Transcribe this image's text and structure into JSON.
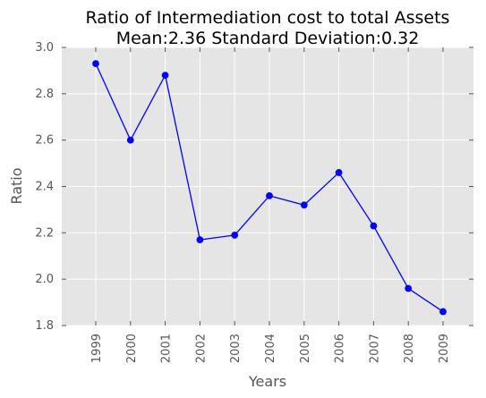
{
  "chart_data": {
    "type": "line",
    "title": "Ratio of Intermediation cost to total Assets",
    "subtitle": "Mean:2.36 Standard Deviation:0.32",
    "xlabel": "Years",
    "ylabel": "Ratio",
    "x": [
      "1999",
      "2000",
      "2001",
      "2002",
      "2003",
      "2004",
      "2005",
      "2006",
      "2007",
      "2008",
      "2009"
    ],
    "series": [
      {
        "values": [
          2.93,
          2.6,
          2.88,
          2.17,
          2.19,
          2.36,
          2.32,
          2.46,
          2.23,
          1.96,
          1.86
        ]
      }
    ],
    "ylim": [
      1.8,
      3.0
    ],
    "yticks": [
      "1.8",
      "2.0",
      "2.2",
      "2.4",
      "2.6",
      "2.8",
      "3.0"
    ],
    "grid": true,
    "legend": "none",
    "colors": {
      "background": "#e5e5e5",
      "grid": "#ffffff",
      "line": "#0000ff",
      "marker": "#0000ff"
    }
  }
}
